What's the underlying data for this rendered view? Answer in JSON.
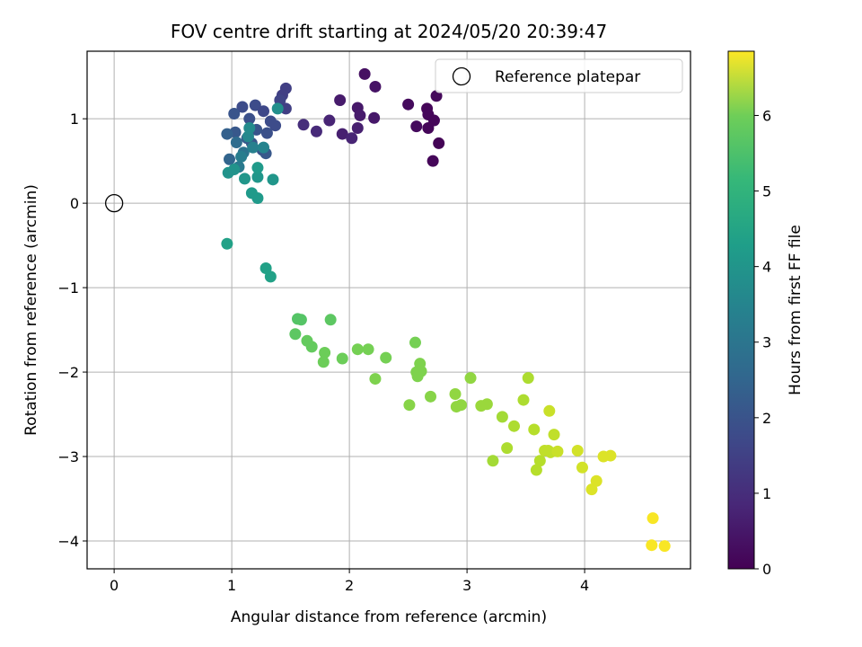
{
  "chart_data": {
    "type": "scatter",
    "title": "FOV centre drift starting at 2024/05/20 20:39:47",
    "xlabel": "Angular distance from reference (arcmin)",
    "ylabel": "Rotation from reference (arcmin)",
    "xlim": [
      -0.23,
      4.9
    ],
    "ylim": [
      -4.33,
      1.8
    ],
    "xticks": [
      0,
      1,
      2,
      3,
      4
    ],
    "yticks": [
      -4,
      -3,
      -2,
      -1,
      0,
      1
    ],
    "xtick_labels": [
      "0",
      "1",
      "2",
      "3",
      "4"
    ],
    "ytick_labels": [
      "−4",
      "−3",
      "−2",
      "−1",
      "0",
      "1"
    ],
    "grid": true,
    "legend": {
      "position": "top-right",
      "entries": [
        {
          "label": "Reference platepar",
          "marker": "open-circle"
        }
      ]
    },
    "reference_point": {
      "x": 0,
      "y": 0
    },
    "colorbar": {
      "label": "Hours from first FF file",
      "colormap": "viridis",
      "range": [
        0,
        6.85
      ],
      "ticks": [
        0,
        1,
        2,
        3,
        4,
        5,
        6
      ],
      "tick_labels": [
        "0",
        "1",
        "2",
        "3",
        "4",
        "5",
        "6"
      ]
    },
    "series": [
      {
        "points": [
          {
            "x": 2.13,
            "y": 1.53,
            "c": 0.3
          },
          {
            "x": 2.22,
            "y": 1.38,
            "c": 0.35
          },
          {
            "x": 2.74,
            "y": 1.27,
            "c": 0.15
          },
          {
            "x": 2.5,
            "y": 1.17,
            "c": 0.2
          },
          {
            "x": 2.66,
            "y": 1.12,
            "c": 0.1
          },
          {
            "x": 2.67,
            "y": 1.05,
            "c": 0.12
          },
          {
            "x": 2.72,
            "y": 0.98,
            "c": 0.1
          },
          {
            "x": 2.57,
            "y": 0.91,
            "c": 0.18
          },
          {
            "x": 2.67,
            "y": 0.89,
            "c": 0.1
          },
          {
            "x": 2.76,
            "y": 0.71,
            "c": 0.05
          },
          {
            "x": 2.71,
            "y": 0.5,
            "c": 0.1
          },
          {
            "x": 2.07,
            "y": 1.13,
            "c": 0.45
          },
          {
            "x": 2.09,
            "y": 1.04,
            "c": 0.5
          },
          {
            "x": 2.21,
            "y": 1.01,
            "c": 0.45
          },
          {
            "x": 1.92,
            "y": 1.22,
            "c": 0.5
          },
          {
            "x": 1.83,
            "y": 0.98,
            "c": 0.7
          },
          {
            "x": 2.07,
            "y": 0.89,
            "c": 0.6
          },
          {
            "x": 1.94,
            "y": 0.82,
            "c": 0.6
          },
          {
            "x": 2.02,
            "y": 0.77,
            "c": 0.7
          },
          {
            "x": 1.72,
            "y": 0.85,
            "c": 0.8
          },
          {
            "x": 1.61,
            "y": 0.93,
            "c": 0.9
          },
          {
            "x": 1.46,
            "y": 1.36,
            "c": 1.3
          },
          {
            "x": 1.43,
            "y": 1.28,
            "c": 1.3
          },
          {
            "x": 1.41,
            "y": 1.22,
            "c": 1.4
          },
          {
            "x": 1.46,
            "y": 1.12,
            "c": 1.3
          },
          {
            "x": 1.09,
            "y": 1.14,
            "c": 1.6
          },
          {
            "x": 1.2,
            "y": 1.16,
            "c": 1.6
          },
          {
            "x": 1.27,
            "y": 1.09,
            "c": 1.5
          },
          {
            "x": 1.02,
            "y": 1.06,
            "c": 1.8
          },
          {
            "x": 1.15,
            "y": 1.0,
            "c": 1.7
          },
          {
            "x": 1.33,
            "y": 0.97,
            "c": 1.6
          },
          {
            "x": 1.37,
            "y": 0.92,
            "c": 1.6
          },
          {
            "x": 1.03,
            "y": 0.84,
            "c": 1.9
          },
          {
            "x": 0.96,
            "y": 0.82,
            "c": 2.1
          },
          {
            "x": 1.21,
            "y": 0.87,
            "c": 1.8
          },
          {
            "x": 1.3,
            "y": 0.83,
            "c": 1.7
          },
          {
            "x": 1.13,
            "y": 0.77,
            "c": 2.0
          },
          {
            "x": 1.17,
            "y": 0.71,
            "c": 1.9
          },
          {
            "x": 1.26,
            "y": 0.63,
            "c": 1.8
          },
          {
            "x": 1.29,
            "y": 0.59,
            "c": 1.9
          },
          {
            "x": 0.98,
            "y": 0.52,
            "c": 2.2
          },
          {
            "x": 1.04,
            "y": 0.72,
            "c": 2.4
          },
          {
            "x": 1.1,
            "y": 0.6,
            "c": 2.6
          },
          {
            "x": 1.06,
            "y": 0.43,
            "c": 2.8
          },
          {
            "x": 1.08,
            "y": 0.55,
            "c": 2.9
          },
          {
            "x": 1.18,
            "y": 0.66,
            "c": 3.0
          },
          {
            "x": 1.27,
            "y": 0.66,
            "c": 3.1
          },
          {
            "x": 1.14,
            "y": 0.79,
            "c": 3.2
          },
          {
            "x": 1.15,
            "y": 0.89,
            "c": 3.3
          },
          {
            "x": 1.39,
            "y": 1.12,
            "c": 3.4
          },
          {
            "x": 0.97,
            "y": 0.36,
            "c": 3.5
          },
          {
            "x": 1.02,
            "y": 0.4,
            "c": 3.5
          },
          {
            "x": 1.11,
            "y": 0.29,
            "c": 3.6
          },
          {
            "x": 1.22,
            "y": 0.31,
            "c": 3.6
          },
          {
            "x": 1.22,
            "y": 0.42,
            "c": 3.7
          },
          {
            "x": 1.35,
            "y": 0.28,
            "c": 3.6
          },
          {
            "x": 1.17,
            "y": 0.12,
            "c": 3.7
          },
          {
            "x": 1.22,
            "y": 0.06,
            "c": 3.7
          },
          {
            "x": 0.96,
            "y": -0.48,
            "c": 3.9
          },
          {
            "x": 1.29,
            "y": -0.77,
            "c": 3.9
          },
          {
            "x": 1.33,
            "y": -0.87,
            "c": 3.9
          },
          {
            "x": 1.56,
            "y": -1.37,
            "c": 5.0
          },
          {
            "x": 1.59,
            "y": -1.38,
            "c": 5.0
          },
          {
            "x": 1.54,
            "y": -1.55,
            "c": 5.1
          },
          {
            "x": 1.84,
            "y": -1.38,
            "c": 5.1
          },
          {
            "x": 1.64,
            "y": -1.63,
            "c": 5.2
          },
          {
            "x": 1.68,
            "y": -1.7,
            "c": 5.2
          },
          {
            "x": 1.79,
            "y": -1.77,
            "c": 5.3
          },
          {
            "x": 1.78,
            "y": -1.88,
            "c": 5.3
          },
          {
            "x": 1.94,
            "y": -1.84,
            "c": 5.3
          },
          {
            "x": 2.07,
            "y": -1.73,
            "c": 5.4
          },
          {
            "x": 2.16,
            "y": -1.73,
            "c": 5.4
          },
          {
            "x": 2.31,
            "y": -1.83,
            "c": 5.4
          },
          {
            "x": 2.22,
            "y": -2.08,
            "c": 5.5
          },
          {
            "x": 2.56,
            "y": -1.65,
            "c": 5.4
          },
          {
            "x": 2.6,
            "y": -1.9,
            "c": 5.5
          },
          {
            "x": 2.57,
            "y": -2.0,
            "c": 5.5
          },
          {
            "x": 2.61,
            "y": -1.99,
            "c": 5.5
          },
          {
            "x": 2.58,
            "y": -2.05,
            "c": 5.5
          },
          {
            "x": 2.51,
            "y": -2.39,
            "c": 5.6
          },
          {
            "x": 2.69,
            "y": -2.29,
            "c": 5.6
          },
          {
            "x": 2.9,
            "y": -2.26,
            "c": 5.7
          },
          {
            "x": 2.91,
            "y": -2.41,
            "c": 5.7
          },
          {
            "x": 2.95,
            "y": -2.39,
            "c": 5.7
          },
          {
            "x": 3.03,
            "y": -2.07,
            "c": 5.7
          },
          {
            "x": 3.12,
            "y": -2.4,
            "c": 5.8
          },
          {
            "x": 3.17,
            "y": -2.38,
            "c": 5.8
          },
          {
            "x": 3.22,
            "y": -3.05,
            "c": 5.9
          },
          {
            "x": 3.3,
            "y": -2.53,
            "c": 5.9
          },
          {
            "x": 3.34,
            "y": -2.9,
            "c": 6.0
          },
          {
            "x": 3.4,
            "y": -2.64,
            "c": 6.0
          },
          {
            "x": 3.48,
            "y": -2.33,
            "c": 6.0
          },
          {
            "x": 3.52,
            "y": -2.07,
            "c": 6.0
          },
          {
            "x": 3.57,
            "y": -2.68,
            "c": 6.1
          },
          {
            "x": 3.59,
            "y": -3.16,
            "c": 6.1
          },
          {
            "x": 3.62,
            "y": -3.05,
            "c": 6.1
          },
          {
            "x": 3.66,
            "y": -2.93,
            "c": 6.2
          },
          {
            "x": 3.69,
            "y": -2.93,
            "c": 6.2
          },
          {
            "x": 3.71,
            "y": -2.95,
            "c": 6.2
          },
          {
            "x": 3.74,
            "y": -2.74,
            "c": 6.2
          },
          {
            "x": 3.77,
            "y": -2.94,
            "c": 6.3
          },
          {
            "x": 3.7,
            "y": -2.46,
            "c": 6.3
          },
          {
            "x": 3.94,
            "y": -2.93,
            "c": 6.4
          },
          {
            "x": 3.98,
            "y": -3.13,
            "c": 6.4
          },
          {
            "x": 4.06,
            "y": -3.39,
            "c": 6.5
          },
          {
            "x": 4.1,
            "y": -3.29,
            "c": 6.5
          },
          {
            "x": 4.16,
            "y": -3.0,
            "c": 6.5
          },
          {
            "x": 4.22,
            "y": -2.99,
            "c": 6.5
          },
          {
            "x": 4.58,
            "y": -3.73,
            "c": 6.8
          },
          {
            "x": 4.57,
            "y": -4.05,
            "c": 6.8
          },
          {
            "x": 4.68,
            "y": -4.06,
            "c": 6.8
          }
        ]
      }
    ]
  }
}
